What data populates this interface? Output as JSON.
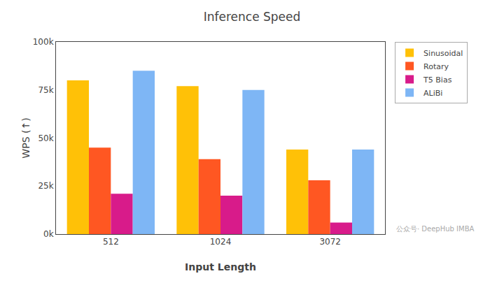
{
  "chart_data": {
    "type": "bar",
    "title": "Inference Speed",
    "xlabel": "Input Length",
    "ylabel": "WPS (↑)",
    "categories": [
      "512",
      "1024",
      "3072"
    ],
    "series": [
      {
        "name": "Sinusoidal",
        "color": "#FFC107",
        "values": [
          80000,
          77000,
          44000
        ]
      },
      {
        "name": "Rotary",
        "color": "#FF5722",
        "values": [
          45000,
          39000,
          28000
        ]
      },
      {
        "name": "T5 Bias",
        "color": "#D81B8A",
        "values": [
          21000,
          20000,
          6000
        ]
      },
      {
        "name": "ALiBi",
        "color": "#7EB6F5",
        "values": [
          85000,
          75000,
          44000
        ]
      }
    ],
    "ylim": [
      0,
      100000
    ],
    "yticks": [
      {
        "value": 0,
        "label": "0k"
      },
      {
        "value": 25000,
        "label": "25k"
      },
      {
        "value": 50000,
        "label": "50k"
      },
      {
        "value": 75000,
        "label": "75k"
      },
      {
        "value": 100000,
        "label": "100k"
      }
    ],
    "grid": false,
    "legend": "right",
    "annotations": [
      "公众号· DeepHub IMBA"
    ]
  }
}
